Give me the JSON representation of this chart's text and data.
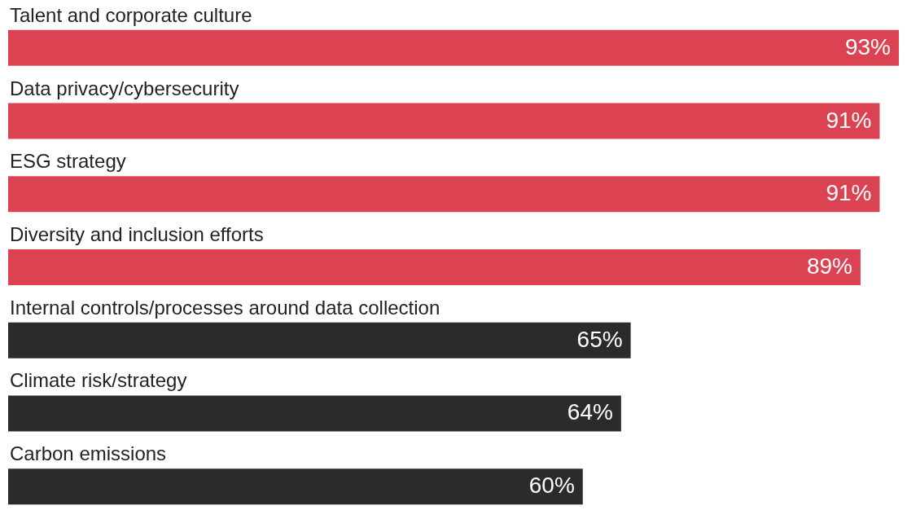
{
  "chart_data": {
    "type": "bar",
    "orientation": "horizontal",
    "categories": [
      "Talent and corporate culture",
      "Data privacy/cybersecurity",
      "ESG strategy",
      "Diversity and inclusion efforts",
      "Internal controls/processes around data collection",
      "Climate risk/strategy",
      "Carbon emissions"
    ],
    "values": [
      93,
      91,
      91,
      89,
      65,
      64,
      60
    ],
    "value_labels": [
      "93%",
      "91%",
      "91%",
      "89%",
      "65%",
      "64%",
      "60%"
    ],
    "colors": [
      "#dc4352",
      "#dc4352",
      "#dc4352",
      "#dc4352",
      "#2b2b2b",
      "#2b2b2b",
      "#2b2b2b"
    ]
  }
}
